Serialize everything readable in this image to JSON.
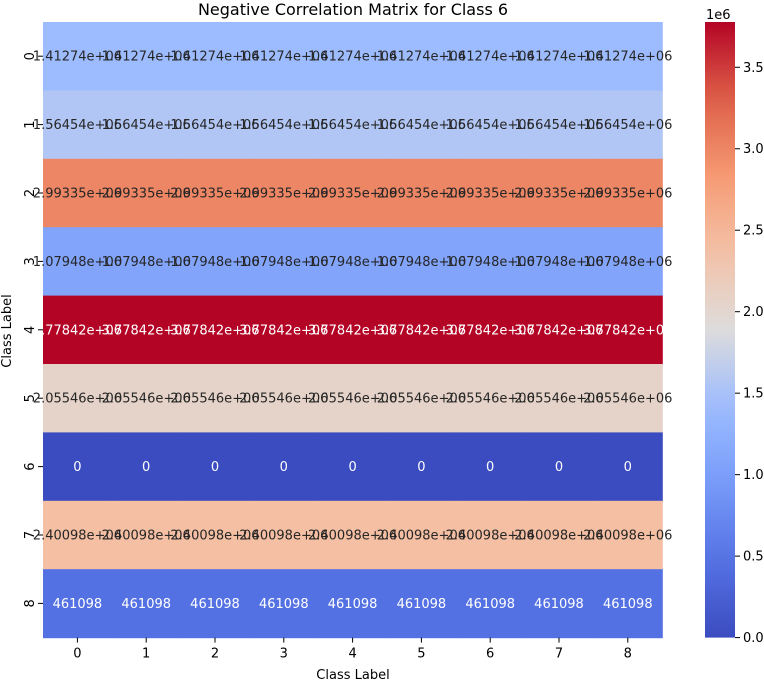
{
  "chart_data": {
    "type": "heatmap",
    "title": "Negative Correlation Matrix for Class 6",
    "xlabel": "Class Label",
    "ylabel": "Class Label",
    "x_ticks": [
      "0",
      "1",
      "2",
      "3",
      "4",
      "5",
      "6",
      "7",
      "8"
    ],
    "y_ticks": [
      "0",
      "1",
      "2",
      "3",
      "4",
      "5",
      "6",
      "7",
      "8"
    ],
    "colormap": "coolwarm",
    "vmin": 0,
    "vmax": 3777842,
    "colorbar": {
      "offset_label": "1e6",
      "ticks": [
        "0.0",
        "0.5",
        "1.0",
        "1.5",
        "2.0",
        "2.5",
        "3.0",
        "3.5"
      ]
    },
    "rows": [
      {
        "value": 1412740,
        "label": "1.41274e+06"
      },
      {
        "value": 1564540,
        "label": "1.56454e+06"
      },
      {
        "value": 2993350,
        "label": "2.99335e+06"
      },
      {
        "value": 1079480,
        "label": "1.07948e+06"
      },
      {
        "value": 3778420,
        "label": "3.77842e+06"
      },
      {
        "value": 2055460,
        "label": "2.05546e+06"
      },
      {
        "value": 0,
        "label": "0"
      },
      {
        "value": 2400980,
        "label": "2.40098e+06"
      },
      {
        "value": 461098,
        "label": "461098"
      }
    ],
    "colors": {
      "low": "#3b4cc0",
      "high": "#b40426",
      "light_text": "#ffffff",
      "dark_text": "#262626"
    }
  }
}
